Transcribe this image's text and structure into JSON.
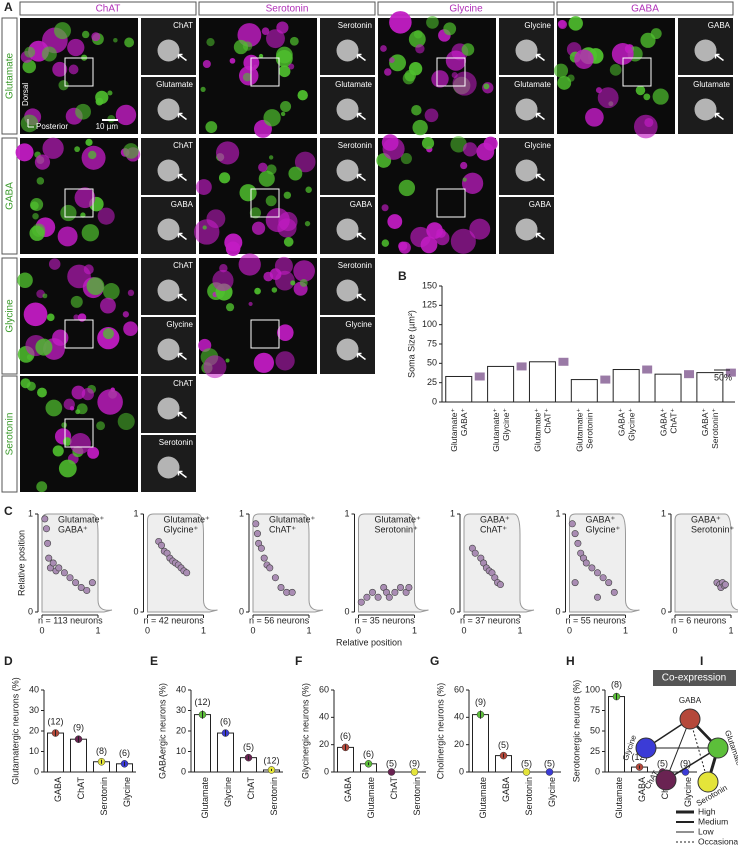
{
  "panel_labels": [
    "A",
    "B",
    "C",
    "D",
    "E",
    "F",
    "G",
    "H",
    "I"
  ],
  "panel_a": {
    "columns": [
      "ChAT",
      "Serotonin",
      "Glycine",
      "GABA"
    ],
    "rows": [
      {
        "label": "Glutamate",
        "cells": [
          {
            "top": "ChAT",
            "bottom": "Glutamate"
          },
          {
            "top": "Serotonin",
            "bottom": "Glutamate"
          },
          {
            "top": "Glycine",
            "bottom": "Glutamate"
          },
          {
            "top": "GABA",
            "bottom": "Glutamate"
          }
        ]
      },
      {
        "label": "GABA",
        "cells": [
          {
            "top": "ChAT",
            "bottom": "GABA"
          },
          {
            "top": "Serotonin",
            "bottom": "GABA"
          },
          {
            "top": "Glycine",
            "bottom": "GABA"
          }
        ]
      },
      {
        "label": "Glycine",
        "cells": [
          {
            "top": "ChAT",
            "bottom": "Glycine"
          },
          {
            "top": "Serotonin",
            "bottom": "Glycine"
          }
        ]
      },
      {
        "label": "Serotonin",
        "cells": [
          {
            "top": "ChAT",
            "bottom": "Serotonin"
          }
        ]
      }
    ],
    "scale_bar": "10 µm",
    "dorsal": "Dorsal",
    "posterior": "Posterior"
  },
  "panel_b": {
    "type": "bar",
    "ylabel": "Soma Size (µm²)",
    "categories": [
      [
        "Glutamate⁺",
        "GABA⁺"
      ],
      [
        "Glutamate⁺",
        "Glycine⁺"
      ],
      [
        "Glutamate⁺",
        "ChAT⁺"
      ],
      [
        "Glutamate⁺",
        "Serotonin⁺"
      ],
      [
        "GABA⁺",
        "Glycine⁺"
      ],
      [
        "GABA⁺",
        "ChAT⁺"
      ],
      [
        "GABA⁺",
        "Serotonin⁺"
      ]
    ],
    "values": [
      33,
      46,
      52,
      29,
      42,
      36,
      38
    ],
    "ylim": [
      0,
      150
    ],
    "yticks": [
      0,
      25,
      50,
      75,
      100,
      125,
      150
    ],
    "scale_label": "50%"
  },
  "panel_c": {
    "type": "scatter",
    "xlabel": "Relative position",
    "ylabel": "Relative position",
    "xlim": [
      0,
      1
    ],
    "ylim": [
      0,
      1
    ],
    "xticks": [
      0,
      1
    ],
    "yticks": [
      0,
      1
    ],
    "color": "#a98cb3",
    "plots": [
      {
        "title": [
          "Glutamate⁺",
          "GABA⁺"
        ],
        "n_label": "n = 113 neurons",
        "x": [
          0.05,
          0.08,
          0.1,
          0.12,
          0.15,
          0.2,
          0.25,
          0.3,
          0.4,
          0.5,
          0.6,
          0.7,
          0.8,
          0.9
        ],
        "y": [
          0.95,
          0.85,
          0.7,
          0.55,
          0.45,
          0.5,
          0.42,
          0.45,
          0.4,
          0.35,
          0.3,
          0.25,
          0.22,
          0.3
        ]
      },
      {
        "title": [
          "Glutamate⁺",
          "Glycine⁺"
        ],
        "n_label": "n = 42 neurons",
        "x": [
          0.2,
          0.25,
          0.3,
          0.35,
          0.4,
          0.45,
          0.5,
          0.55,
          0.6,
          0.65,
          0.7
        ],
        "y": [
          0.72,
          0.68,
          0.62,
          0.6,
          0.55,
          0.52,
          0.5,
          0.48,
          0.45,
          0.42,
          0.4
        ]
      },
      {
        "title": [
          "Glutamate⁺",
          "ChAT⁺"
        ],
        "n_label": "n = 56 neurons",
        "x": [
          0.05,
          0.08,
          0.1,
          0.15,
          0.2,
          0.25,
          0.3,
          0.4,
          0.5,
          0.6,
          0.7
        ],
        "y": [
          0.9,
          0.8,
          0.7,
          0.65,
          0.55,
          0.48,
          0.45,
          0.35,
          0.25,
          0.2,
          0.2
        ]
      },
      {
        "title": [
          "Glutamate⁺",
          "Serotonin⁺"
        ],
        "n_label": "n = 35 neurons",
        "x": [
          0.05,
          0.15,
          0.25,
          0.35,
          0.45,
          0.5,
          0.55,
          0.65,
          0.75,
          0.85,
          0.9
        ],
        "y": [
          0.1,
          0.15,
          0.2,
          0.15,
          0.25,
          0.2,
          0.15,
          0.2,
          0.25,
          0.2,
          0.25
        ]
      },
      {
        "title": [
          "GABA⁺",
          "ChAT⁺"
        ],
        "n_label": "n = 37 neurons",
        "x": [
          0.15,
          0.2,
          0.3,
          0.35,
          0.4,
          0.45,
          0.5,
          0.55,
          0.6,
          0.65
        ],
        "y": [
          0.65,
          0.6,
          0.55,
          0.5,
          0.45,
          0.42,
          0.4,
          0.35,
          0.3,
          0.28
        ]
      },
      {
        "title": [
          "GABA⁺",
          "Glycine⁺"
        ],
        "n_label": "n = 55 neurons",
        "x": [
          0.05,
          0.1,
          0.15,
          0.2,
          0.25,
          0.3,
          0.4,
          0.5,
          0.6,
          0.7,
          0.8,
          0.1,
          0.5
        ],
        "y": [
          0.9,
          0.8,
          0.7,
          0.6,
          0.55,
          0.5,
          0.45,
          0.4,
          0.35,
          0.3,
          0.2,
          0.3,
          0.15
        ]
      },
      {
        "title": [
          "GABA⁺",
          "Serotonin⁺"
        ],
        "n_label": "n = 6 neurons",
        "x": [
          0.75,
          0.8,
          0.82,
          0.85,
          0.88,
          0.9
        ],
        "y": [
          0.3,
          0.28,
          0.25,
          0.3,
          0.27,
          0.28
        ]
      }
    ]
  },
  "bar_panels": [
    {
      "type": "bar",
      "ylabel": "Glutamatergic neurons (%)",
      "categories": [
        "GABA",
        "ChAT",
        "Serotonin",
        "Glycine"
      ],
      "values": [
        19,
        16,
        5,
        4
      ],
      "errors": [
        1.5,
        1.5,
        1,
        1
      ],
      "n_labels": [
        "(12)",
        "(9)",
        "(8)",
        "(6)"
      ],
      "colors": [
        "#b5483a",
        "#6a2352",
        "#e4e43a",
        "#3b3bd6"
      ],
      "ylim": [
        0,
        40
      ],
      "yticks": [
        0,
        10,
        20,
        30,
        40
      ]
    },
    {
      "type": "bar",
      "ylabel": "GABAergic neurons (%)",
      "categories": [
        "Glutamate",
        "Glycine",
        "ChAT",
        "Serotonin"
      ],
      "values": [
        28,
        19,
        7,
        1
      ],
      "errors": [
        2,
        1.5,
        1,
        0.5
      ],
      "n_labels": [
        "(12)",
        "(6)",
        "(5)",
        "(12)"
      ],
      "colors": [
        "#5cbf3a",
        "#3b3bd6",
        "#6a2352",
        "#e4e43a"
      ],
      "ylim": [
        0,
        40
      ],
      "yticks": [
        0,
        10,
        20,
        30,
        40
      ]
    },
    {
      "type": "bar",
      "ylabel": "Glycinergic neurons (%)",
      "categories": [
        "GABA",
        "Glutamate",
        "ChAT",
        "Serotonin"
      ],
      "values": [
        18,
        6,
        0,
        0
      ],
      "errors": [
        2,
        1,
        0,
        0
      ],
      "n_labels": [
        "(6)",
        "(6)",
        "(5)",
        "(9)"
      ],
      "colors": [
        "#b5483a",
        "#5cbf3a",
        "#6a2352",
        "#e4e43a"
      ],
      "ylim": [
        0,
        60
      ],
      "yticks": [
        0,
        20,
        40,
        60
      ]
    },
    {
      "type": "bar",
      "ylabel": "Cholinergic neurons (%)",
      "categories": [
        "Glutamate",
        "GABA",
        "Serotonin",
        "Glycine"
      ],
      "values": [
        42,
        12,
        0,
        0
      ],
      "errors": [
        3,
        1.5,
        0,
        0
      ],
      "n_labels": [
        "(9)",
        "(5)",
        "(5)",
        "(5)"
      ],
      "colors": [
        "#5cbf3a",
        "#b5483a",
        "#e4e43a",
        "#3b3bd6"
      ],
      "ylim": [
        0,
        60
      ],
      "yticks": [
        0,
        20,
        40,
        60
      ]
    },
    {
      "type": "bar",
      "ylabel": "Serotonergic neurons (%)",
      "categories": [
        "Glutamate",
        "GABA",
        "ChAT",
        "Glycine"
      ],
      "values": [
        92,
        6,
        0,
        0
      ],
      "errors": [
        4,
        2,
        0,
        0
      ],
      "n_labels": [
        "(8)",
        "(12)",
        "(5)",
        "(9)"
      ],
      "colors": [
        "#5cbf3a",
        "#b5483a",
        "#6a2352",
        "#3b3bd6"
      ],
      "ylim": [
        0,
        100
      ],
      "yticks": [
        0,
        25,
        50,
        75,
        100
      ]
    }
  ],
  "panel_i": {
    "title": "Co-expression",
    "nodes": [
      "GABA",
      "Glycine",
      "Glutamate",
      "ChAT",
      "Serotonin"
    ],
    "legend": [
      "High",
      "Medium",
      "Low",
      "Occasional"
    ]
  }
}
